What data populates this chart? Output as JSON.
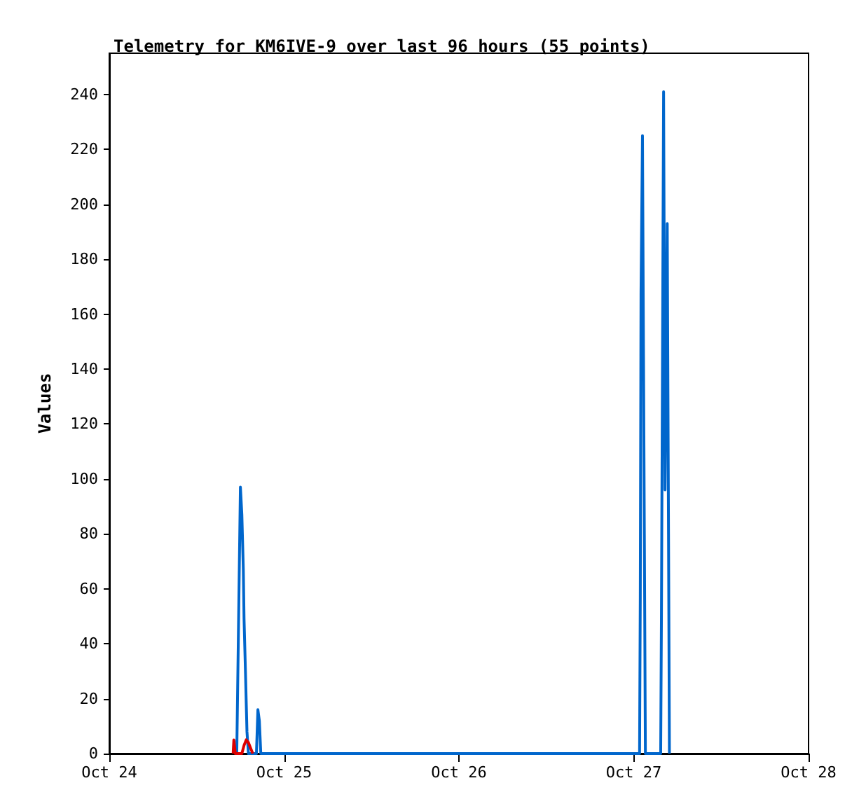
{
  "chart_data": {
    "type": "line",
    "title": "Telemetry for KM6IVE-9 over last 96 hours (55 points)",
    "ylabel": "Values",
    "marker": "none",
    "xlim": [
      "--10-24",
      "--10-28"
    ],
    "xticks": [
      {
        "value": "--10-24",
        "label": "Oct 24"
      },
      {
        "value": "--10-25",
        "label": "Oct 25"
      },
      {
        "value": "--10-26",
        "label": "Oct 26"
      },
      {
        "value": "--10-27",
        "label": "Oct 27"
      },
      {
        "value": "--10-28",
        "label": "Oct 28"
      }
    ],
    "ylim": [
      0,
      255
    ],
    "yticks": [
      0,
      20,
      40,
      60,
      80,
      100,
      120,
      140,
      160,
      180,
      200,
      220,
      240
    ],
    "series": [
      {
        "color": "#0066cc",
        "x": [
          "--10-24T17:30",
          "--10-24T18:00",
          "--10-24T18:12",
          "--10-24T18:24",
          "--10-24T18:30",
          "--10-24T18:42",
          "--10-24T18:54",
          "--10-24T19:06",
          "--10-24T20:12",
          "--10-24T20:24",
          "--10-24T20:36",
          "--10-24T20:48",
          "--10-27T00:48",
          "--10-27T00:54",
          "--10-27T01:00",
          "--10-27T01:12",
          "--10-27T01:24",
          "--10-27T01:36",
          "--10-27T03:42",
          "--10-27T03:48",
          "--10-27T04:06",
          "--10-27T04:18",
          "--10-27T04:36",
          "--10-27T04:54"
        ],
        "values": [
          0,
          97,
          87,
          67,
          49,
          29,
          8,
          0,
          0,
          16,
          12,
          0,
          0,
          57,
          168,
          225,
          112,
          0,
          0,
          48,
          241,
          96,
          193,
          0
        ]
      },
      {
        "color": "#dd0000",
        "x": [
          "--10-24T17:00",
          "--10-24T17:06",
          "--10-24T17:18",
          "--10-24T18:12",
          "--10-24T18:30",
          "--10-24T18:48",
          "--10-24T19:06",
          "--10-24T19:24",
          "--10-24T19:42"
        ],
        "values": [
          0,
          5,
          0,
          0,
          3,
          5,
          4,
          2,
          0
        ]
      }
    ]
  }
}
